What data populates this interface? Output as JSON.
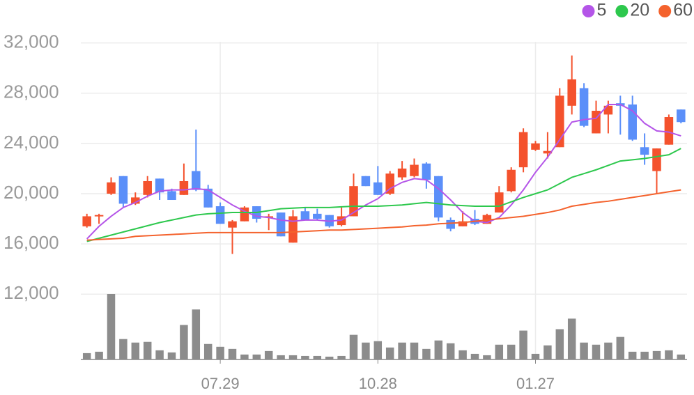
{
  "chart_data": {
    "type": "candlestick",
    "categories": [
      null,
      null,
      null,
      null,
      null,
      null,
      null,
      null,
      null,
      null,
      null,
      "07.29",
      null,
      null,
      null,
      null,
      null,
      null,
      null,
      null,
      null,
      null,
      null,
      null,
      "10.28",
      null,
      null,
      null,
      null,
      null,
      null,
      null,
      null,
      null,
      null,
      null,
      null,
      "01.27",
      null,
      null,
      null,
      null,
      null,
      null,
      null,
      null,
      null,
      null,
      null,
      null
    ],
    "open": [
      17400,
      18200,
      20000,
      21400,
      19200,
      19900,
      21200,
      20200,
      19900,
      21800,
      20400,
      19000,
      17300,
      17800,
      19000,
      18100,
      18500,
      16100,
      18600,
      18400,
      18300,
      17500,
      18200,
      21400,
      20900,
      20000,
      21300,
      21400,
      22400,
      21400,
      17900,
      17400,
      18000,
      17600,
      18500,
      20200,
      22100,
      23500,
      23200,
      23700,
      27000,
      28400,
      24800,
      26300,
      27200,
      27100,
      23700,
      21800,
      23900,
      26700
    ],
    "high": [
      18400,
      18400,
      21300,
      21400,
      20100,
      21400,
      21200,
      20400,
      22400,
      25100,
      20700,
      19300,
      17900,
      19000,
      19000,
      18400,
      18500,
      18700,
      18900,
      18800,
      18300,
      18900,
      21600,
      21400,
      22200,
      21800,
      22600,
      22800,
      22500,
      21400,
      18100,
      18600,
      18700,
      18400,
      20600,
      22100,
      25200,
      24200,
      24900,
      28400,
      31000,
      28800,
      27400,
      27400,
      27800,
      27800,
      24800,
      23600,
      26300,
      26700
    ],
    "low": [
      17300,
      17600,
      19900,
      18900,
      19100,
      19700,
      19500,
      19500,
      19900,
      20200,
      18900,
      17600,
      15200,
      17800,
      17700,
      17100,
      16600,
      16100,
      17900,
      17900,
      17300,
      17400,
      18200,
      20600,
      19900,
      19900,
      21100,
      21300,
      20400,
      17800,
      17000,
      17400,
      17500,
      17600,
      18500,
      20100,
      21700,
      23400,
      22800,
      23700,
      26300,
      25300,
      24800,
      24800,
      24700,
      24200,
      22300,
      20000,
      23900,
      25600
    ],
    "close": [
      18200,
      18300,
      20900,
      19200,
      19700,
      21000,
      20100,
      19500,
      21000,
      20300,
      18900,
      17600,
      17800,
      18900,
      18000,
      18200,
      16600,
      18200,
      17900,
      18000,
      17400,
      18200,
      20600,
      20600,
      19900,
      21600,
      22000,
      22300,
      21100,
      18100,
      17200,
      17800,
      17600,
      18300,
      20100,
      21900,
      24900,
      24000,
      23400,
      27800,
      29100,
      25400,
      26600,
      27000,
      27000,
      24300,
      23100,
      23600,
      26100,
      25700
    ],
    "volume": [
      9,
      11,
      93,
      29,
      24,
      25,
      13,
      10,
      49,
      71,
      22,
      18,
      15,
      7,
      7,
      12,
      6,
      6,
      5,
      5,
      4,
      5,
      35,
      24,
      26,
      17,
      24,
      24,
      15,
      27,
      23,
      13,
      8,
      6,
      21,
      21,
      41,
      8,
      20,
      43,
      58,
      24,
      21,
      24,
      32,
      11,
      11,
      12,
      13,
      7
    ],
    "up_color": "#f4522d",
    "down_color": "#5b8ff9",
    "volume_color": "#8c8c8c",
    "series": [
      {
        "name": "5",
        "color": "#b455e8",
        "values": [
          16400,
          17400,
          18200,
          18900,
          19300,
          19800,
          20200,
          20300,
          20300,
          20400,
          20300,
          19700,
          19100,
          18600,
          18200,
          18100,
          17900,
          17800,
          17900,
          17900,
          17800,
          17900,
          18500,
          19100,
          19600,
          20400,
          20900,
          21200,
          21100,
          20400,
          19500,
          18500,
          17800,
          17700,
          18100,
          19100,
          20300,
          21700,
          22900,
          24300,
          25700,
          25900,
          26000,
          27100,
          27100,
          26600,
          25600,
          25000,
          24900,
          24600
        ]
      },
      {
        "name": "20",
        "color": "#2dc84d",
        "values": [
          16200,
          16450,
          16700,
          16950,
          17200,
          17450,
          17700,
          17900,
          18100,
          18300,
          18400,
          18450,
          18500,
          18500,
          18500,
          18650,
          18800,
          18850,
          18900,
          18900,
          18900,
          18950,
          19000,
          19000,
          19000,
          19050,
          19100,
          19200,
          19300,
          19200,
          19100,
          19050,
          19000,
          19000,
          19000,
          19350,
          19700,
          20000,
          20300,
          20800,
          21300,
          21600,
          21900,
          22250,
          22600,
          22700,
          22800,
          22950,
          23100,
          23600
        ]
      },
      {
        "name": "60",
        "color": "#f4622d",
        "values": [
          16300,
          16350,
          16400,
          16450,
          16600,
          16650,
          16700,
          16750,
          16800,
          16850,
          16900,
          16900,
          16900,
          16900,
          16900,
          16900,
          16900,
          16950,
          17000,
          17050,
          17100,
          17100,
          17150,
          17200,
          17250,
          17300,
          17350,
          17450,
          17500,
          17600,
          17650,
          17700,
          17800,
          17900,
          18000,
          18100,
          18200,
          18350,
          18500,
          18700,
          19000,
          19150,
          19300,
          19400,
          19550,
          19700,
          19850,
          20000,
          20150,
          20300
        ]
      }
    ],
    "ylim": [
      6800,
      33200
    ],
    "yticks": [
      {
        "value": 12000,
        "label": "12,000"
      },
      {
        "value": 16000,
        "label": "16,000"
      },
      {
        "value": 20000,
        "label": "20,000"
      },
      {
        "value": 24000,
        "label": "24,000"
      },
      {
        "value": 28000,
        "label": "28,000"
      },
      {
        "value": 32000,
        "label": "32,000"
      }
    ],
    "grid": true,
    "legend": "top-right"
  }
}
